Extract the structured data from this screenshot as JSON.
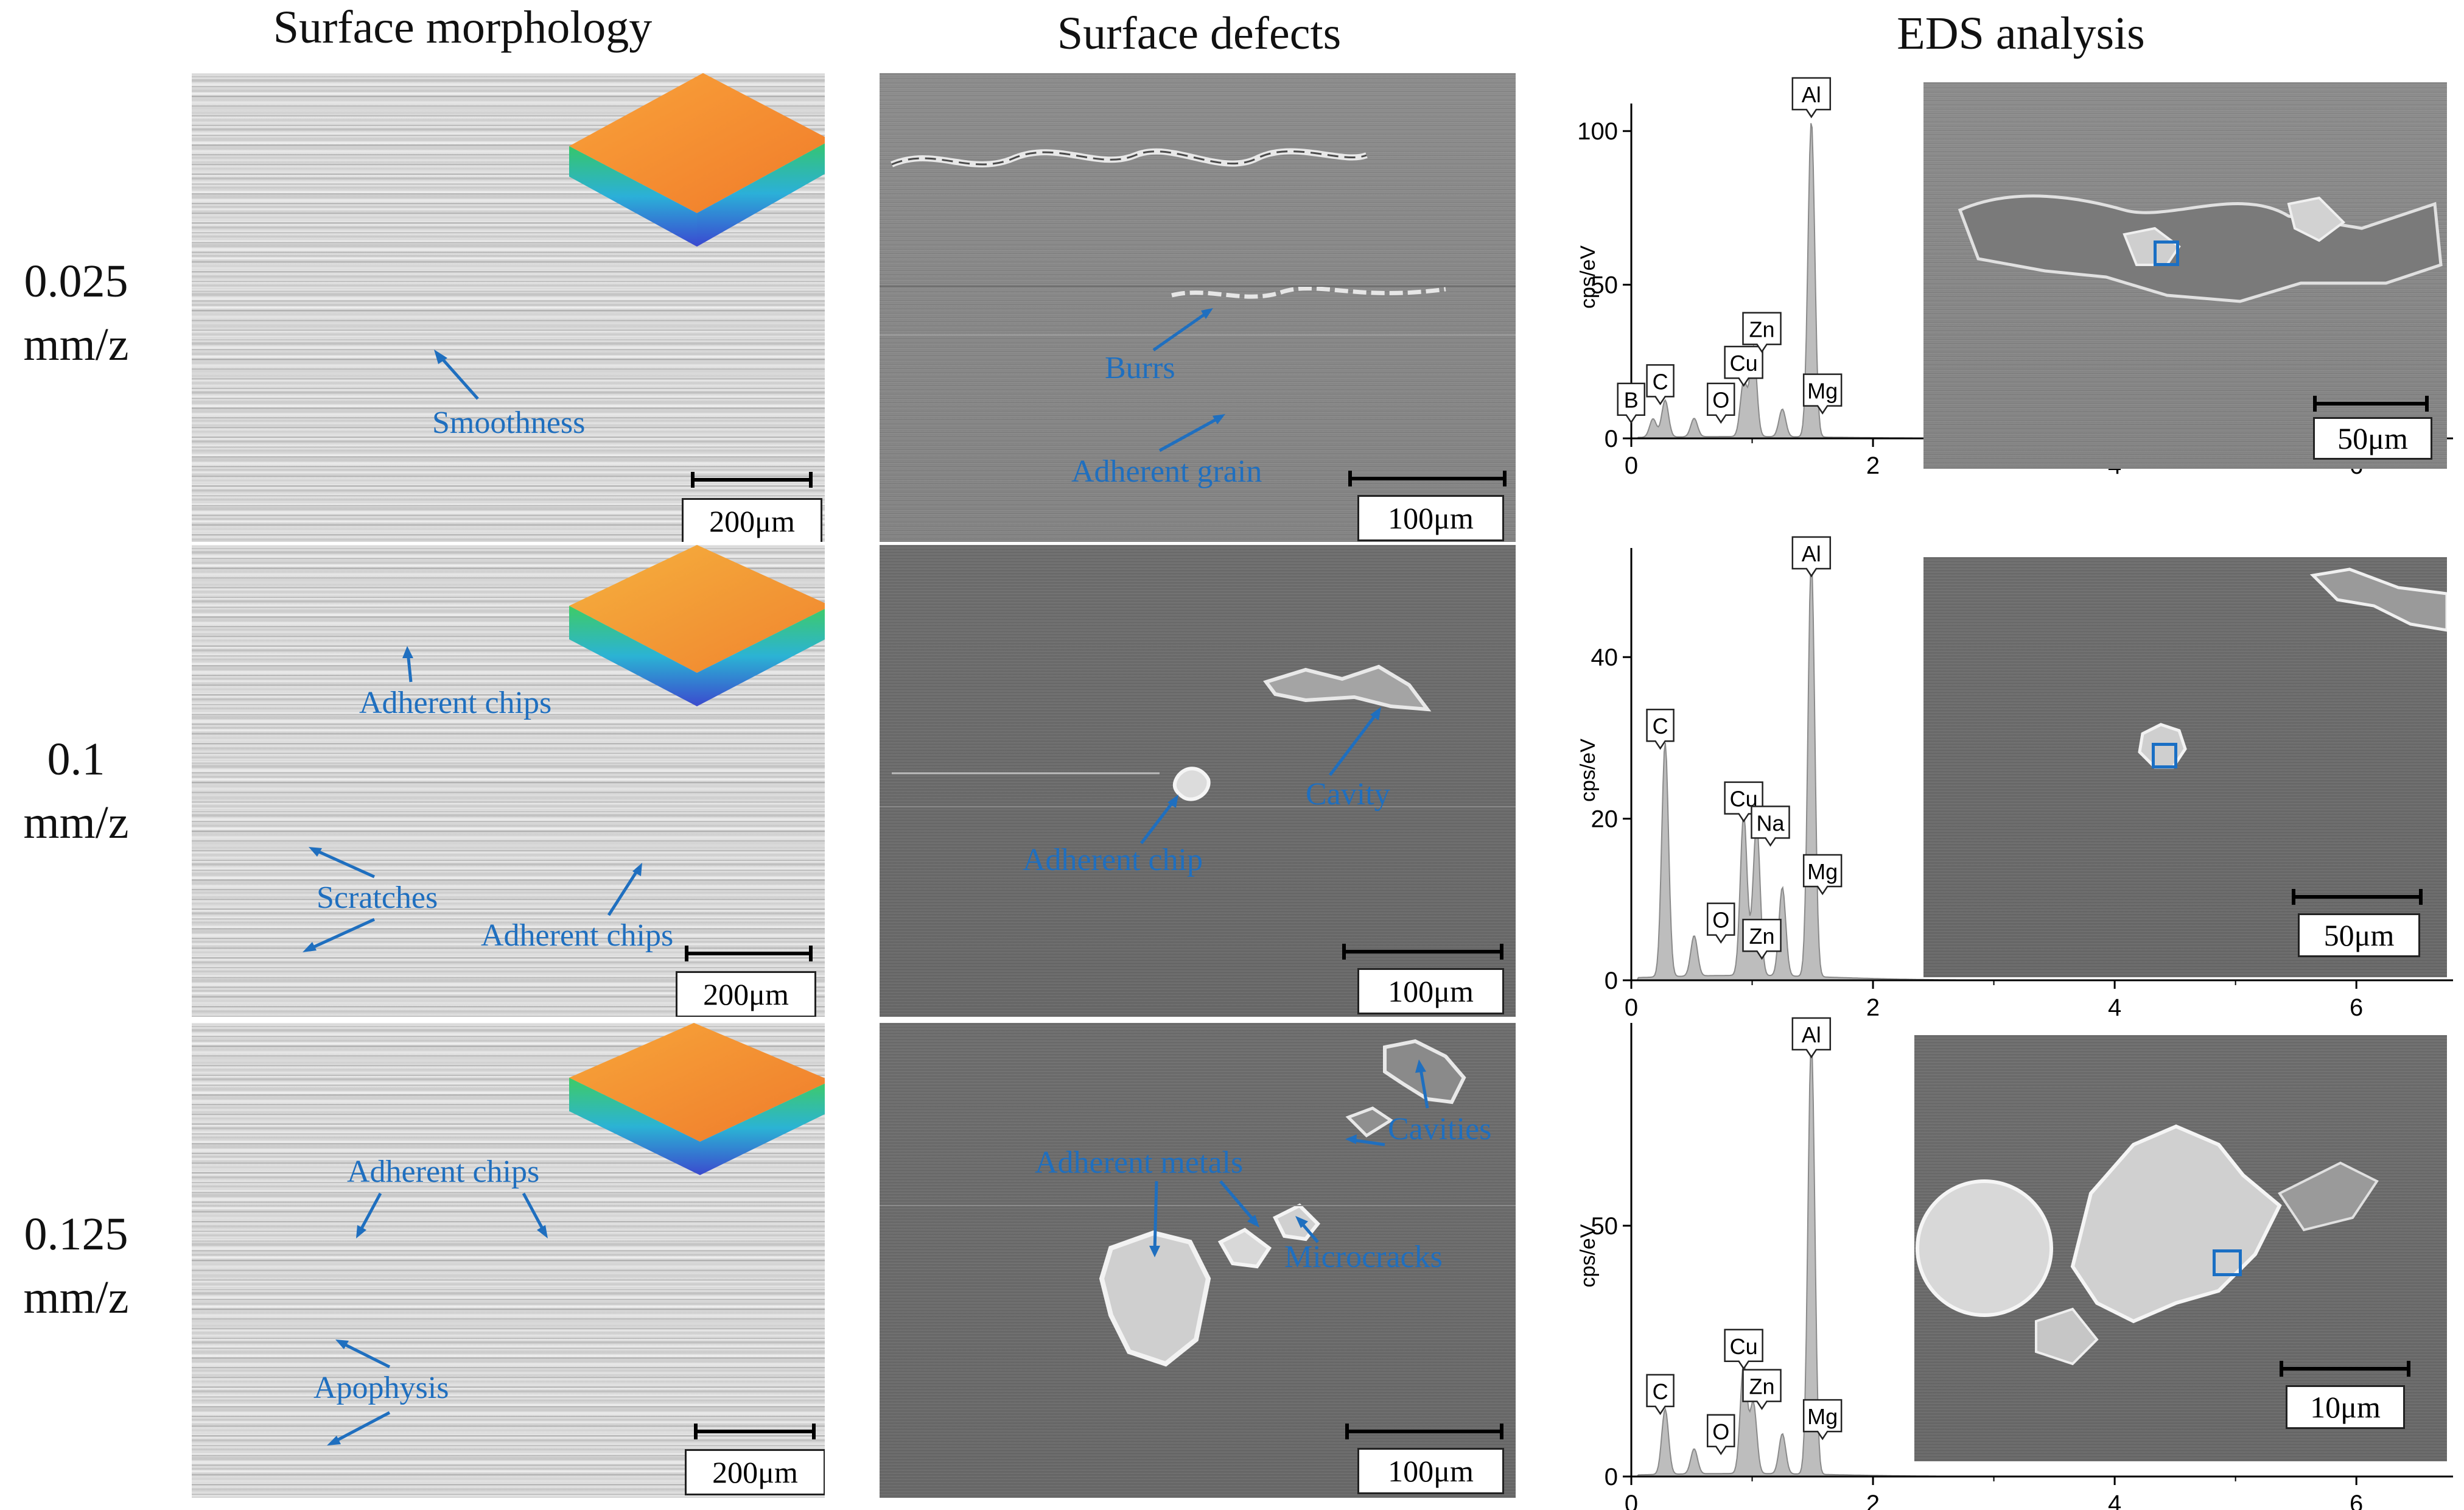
{
  "columns": {
    "morphology": "Surface morphology",
    "defects": "Surface defects",
    "eds": "EDS analysis"
  },
  "rows": [
    {
      "feed": "0.025",
      "unit": "mm/z"
    },
    {
      "feed": "0.1",
      "unit": "mm/z"
    },
    {
      "feed": "0.125",
      "unit": "mm/z"
    }
  ],
  "morphology_panels": [
    {
      "annotations": [
        "Smoothness"
      ],
      "scale": "200μm"
    },
    {
      "annotations": [
        "Adherent chips",
        "Scratches",
        "Adherent chips"
      ],
      "scale": "200μm"
    },
    {
      "annotations": [
        "Adherent chips",
        "Apophysis"
      ],
      "scale": "200μm"
    }
  ],
  "defect_panels": [
    {
      "annotations": [
        "Burrs",
        "Adherent grain"
      ],
      "scale": "100μm"
    },
    {
      "annotations": [
        "Cavity",
        "Adherent chip"
      ],
      "scale": "100μm"
    },
    {
      "annotations": [
        "Cavities",
        "Adherent metals",
        "Microcracks"
      ],
      "scale": "100μm"
    }
  ],
  "eds_insets": [
    {
      "scale": "50μm"
    },
    {
      "scale": "50μm"
    },
    {
      "scale": "10μm"
    }
  ],
  "colors": {
    "annotation": "#1f6fbf",
    "spectrum_fill": "#bdbdbd",
    "marker": "#1a6fc4"
  },
  "chart_data": [
    {
      "type": "area",
      "ylabel": "cps/eV",
      "xlim": [
        0,
        6.8
      ],
      "ylim": [
        0,
        105
      ],
      "xticks": [
        "0",
        "2",
        "4",
        "6"
      ],
      "yticks": [
        "0",
        "50",
        "100"
      ],
      "peaks": [
        {
          "element": "B",
          "energy": 0.18,
          "height": 6
        },
        {
          "element": "C",
          "energy": 0.28,
          "height": 12
        },
        {
          "element": "O",
          "energy": 0.52,
          "height": 6
        },
        {
          "element": "Cu",
          "energy": 0.93,
          "height": 18
        },
        {
          "element": "Zn",
          "energy": 1.01,
          "height": 29
        },
        {
          "element": "Mg",
          "energy": 1.25,
          "height": 9
        },
        {
          "element": "Al",
          "energy": 1.49,
          "height": 103
        }
      ]
    },
    {
      "type": "area",
      "ylabel": "cps/eV",
      "xlim": [
        0,
        6.8
      ],
      "ylim": [
        0,
        52
      ],
      "xticks": [
        "0",
        "2",
        "4",
        "6"
      ],
      "yticks": [
        "0",
        "20",
        "40"
      ],
      "peaks": [
        {
          "element": "C",
          "energy": 0.28,
          "height": 29
        },
        {
          "element": "O",
          "energy": 0.52,
          "height": 5
        },
        {
          "element": "Cu",
          "energy": 0.93,
          "height": 20
        },
        {
          "element": "Zn",
          "energy": 1.01,
          "height": 3
        },
        {
          "element": "Na",
          "energy": 1.04,
          "height": 17
        },
        {
          "element": "Mg",
          "energy": 1.25,
          "height": 11
        },
        {
          "element": "Al",
          "energy": 1.49,
          "height": 52
        }
      ]
    },
    {
      "type": "area",
      "ylabel": "cps/eV",
      "xlim": [
        0,
        6.8
      ],
      "ylim": [
        0,
        88
      ],
      "xticks": [
        "0",
        "2",
        "4",
        "6"
      ],
      "yticks": [
        "0",
        "50"
      ],
      "peaks": [
        {
          "element": "C",
          "energy": 0.28,
          "height": 13
        },
        {
          "element": "O",
          "energy": 0.52,
          "height": 5
        },
        {
          "element": "Cu",
          "energy": 0.93,
          "height": 22
        },
        {
          "element": "Zn",
          "energy": 1.01,
          "height": 14
        },
        {
          "element": "Mg",
          "energy": 1.25,
          "height": 8
        },
        {
          "element": "Al",
          "energy": 1.49,
          "height": 87
        }
      ]
    }
  ]
}
